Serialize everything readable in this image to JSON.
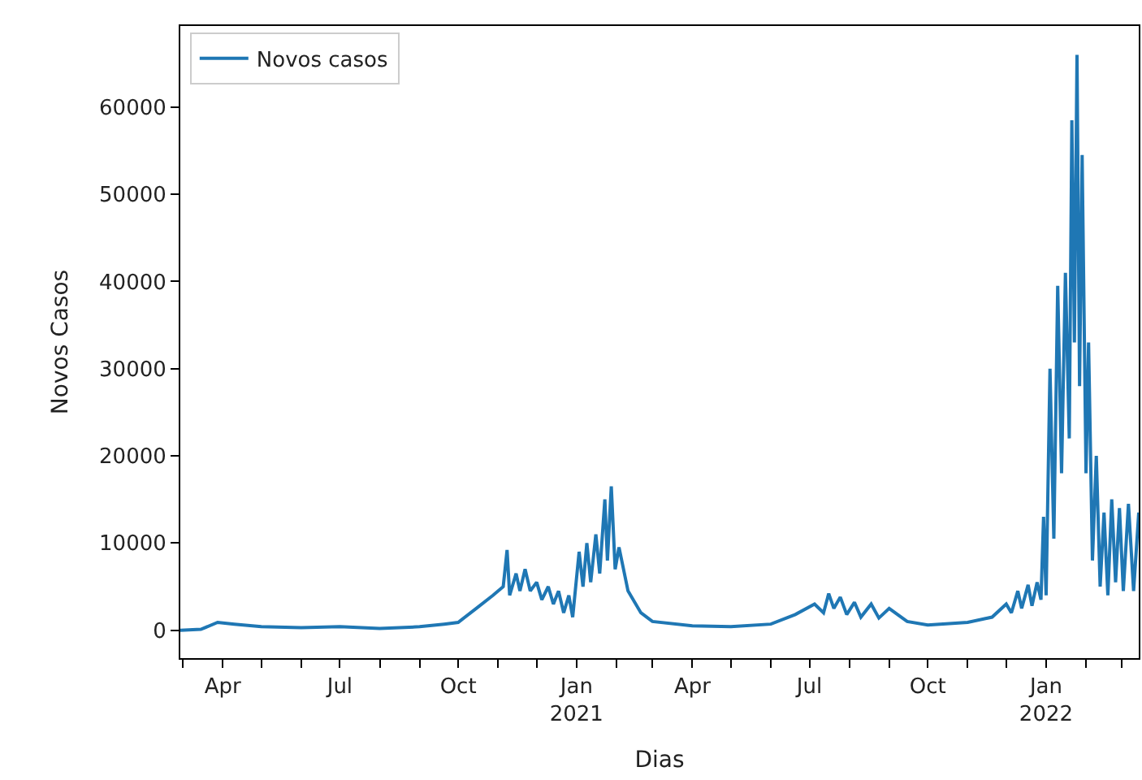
{
  "chart_data": {
    "type": "line",
    "xlabel": "Dias",
    "ylabel": "Novos Casos",
    "legend": "top left",
    "xlim": [
      "2020-02-28",
      "2022-03-14"
    ],
    "xticks": [
      {
        "value": "2020-03-01",
        "label": null
      },
      {
        "value": "2020-04-01",
        "label": "Apr"
      },
      {
        "value": "2020-05-01",
        "label": null
      },
      {
        "value": "2020-06-01",
        "label": null
      },
      {
        "value": "2020-07-01",
        "label": "Jul"
      },
      {
        "value": "2020-08-01",
        "label": null
      },
      {
        "value": "2020-09-01",
        "label": null
      },
      {
        "value": "2020-10-01",
        "label": "Oct"
      },
      {
        "value": "2020-11-01",
        "label": null
      },
      {
        "value": "2020-12-01",
        "label": null
      },
      {
        "value": "2021-01-01",
        "label": "Jan\n2021"
      },
      {
        "value": "2021-02-01",
        "label": null
      },
      {
        "value": "2021-03-01",
        "label": null
      },
      {
        "value": "2021-04-01",
        "label": "Apr"
      },
      {
        "value": "2021-05-01",
        "label": null
      },
      {
        "value": "2021-06-01",
        "label": null
      },
      {
        "value": "2021-07-01",
        "label": "Jul"
      },
      {
        "value": "2021-08-01",
        "label": null
      },
      {
        "value": "2021-09-01",
        "label": null
      },
      {
        "value": "2021-10-01",
        "label": "Oct"
      },
      {
        "value": "2021-11-01",
        "label": null
      },
      {
        "value": "2021-12-01",
        "label": null
      },
      {
        "value": "2022-01-01",
        "label": "Jan\n2022"
      },
      {
        "value": "2022-02-01",
        "label": null
      },
      {
        "value": "2022-03-01",
        "label": null
      }
    ],
    "ylim": [
      -3200,
      69300
    ],
    "yticks": [
      0,
      10000,
      20000,
      30000,
      40000,
      50000,
      60000
    ],
    "x": [
      "2020-02-28",
      "2020-03-15",
      "2020-03-28",
      "2020-04-10",
      "2020-05-01",
      "2020-06-01",
      "2020-07-01",
      "2020-08-01",
      "2020-09-01",
      "2020-09-20",
      "2020-10-01",
      "2020-10-15",
      "2020-10-28",
      "2020-11-05",
      "2020-11-08",
      "2020-11-10",
      "2020-11-15",
      "2020-11-18",
      "2020-11-22",
      "2020-11-26",
      "2020-12-01",
      "2020-12-05",
      "2020-12-10",
      "2020-12-14",
      "2020-12-18",
      "2020-12-22",
      "2020-12-26",
      "2020-12-29",
      "2021-01-03",
      "2021-01-06",
      "2021-01-09",
      "2021-01-12",
      "2021-01-16",
      "2021-01-19",
      "2021-01-23",
      "2021-01-25",
      "2021-01-28",
      "2021-01-31",
      "2021-02-03",
      "2021-02-10",
      "2021-02-20",
      "2021-03-01",
      "2021-04-01",
      "2021-05-01",
      "2021-06-01",
      "2021-06-20",
      "2021-07-05",
      "2021-07-12",
      "2021-07-16",
      "2021-07-20",
      "2021-07-25",
      "2021-07-30",
      "2021-08-05",
      "2021-08-10",
      "2021-08-18",
      "2021-08-24",
      "2021-09-01",
      "2021-09-15",
      "2021-10-01",
      "2021-11-01",
      "2021-11-20",
      "2021-12-01",
      "2021-12-05",
      "2021-12-10",
      "2021-12-13",
      "2021-12-18",
      "2021-12-21",
      "2021-12-25",
      "2021-12-28",
      "2021-12-30",
      "2022-01-01",
      "2022-01-04",
      "2022-01-07",
      "2022-01-10",
      "2022-01-13",
      "2022-01-16",
      "2022-01-19",
      "2022-01-21",
      "2022-01-23",
      "2022-01-25",
      "2022-01-27",
      "2022-01-29",
      "2022-02-01",
      "2022-02-03",
      "2022-02-06",
      "2022-02-09",
      "2022-02-12",
      "2022-02-15",
      "2022-02-18",
      "2022-02-21",
      "2022-02-24",
      "2022-02-27",
      "2022-03-02",
      "2022-03-06",
      "2022-03-10",
      "2022-03-14"
    ],
    "series": [
      {
        "name": "Novos casos",
        "color": "#1f77b4",
        "values": [
          0,
          100,
          900,
          700,
          400,
          300,
          400,
          200,
          400,
          700,
          900,
          2500,
          4000,
          5000,
          9200,
          4000,
          6500,
          4500,
          7000,
          4500,
          5500,
          3500,
          5000,
          3000,
          4500,
          2000,
          4000,
          1500,
          9000,
          5000,
          10000,
          5500,
          11000,
          6500,
          15000,
          8000,
          16500,
          7000,
          9500,
          4500,
          2000,
          1000,
          500,
          400,
          700,
          1800,
          3000,
          2000,
          4200,
          2500,
          3800,
          1800,
          3200,
          1500,
          3000,
          1400,
          2500,
          1000,
          600,
          900,
          1500,
          3000,
          2000,
          4500,
          2500,
          5200,
          2800,
          5500,
          3500,
          13000,
          4000,
          30000,
          10500,
          39500,
          18000,
          41000,
          22000,
          58500,
          33000,
          66000,
          28000,
          54500,
          18000,
          33000,
          8000,
          20000,
          5000,
          13500,
          4000,
          15000,
          5500,
          14000,
          4500,
          14500,
          4500,
          13500
        ]
      }
    ]
  }
}
